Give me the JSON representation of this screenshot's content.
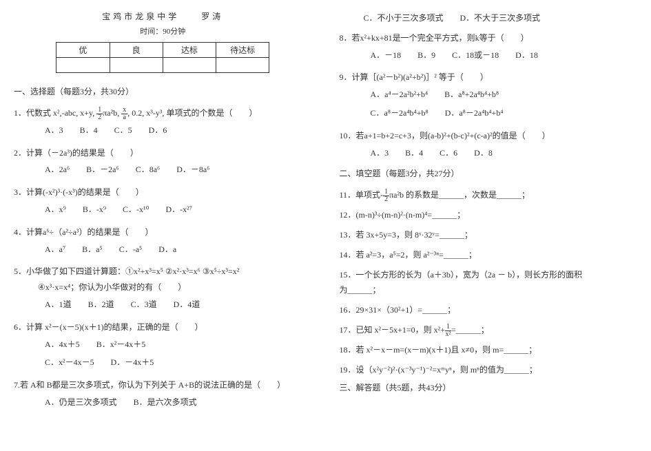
{
  "header": {
    "school": "宝鸡市龙泉中学",
    "teacher": "罗涛",
    "time": "时间：90分钟"
  },
  "gradeTable": {
    "headers": [
      "优",
      "良",
      "达标",
      "待达标"
    ]
  },
  "leftColumn": {
    "section1Title": "一、选择题（每题3分，共30分）",
    "q1": {
      "text": "1．代数式 x²,-abc, x+y, ",
      "text2": "πa²b, ",
      "text3": ", 0.2, x³-y³,",
      "text4": " 单项式的个数是（　　）",
      "options": "A．3　　B．4　　C．5　　D．6"
    },
    "q2": {
      "text": "2．计算（－2a³)的结果是（　　）",
      "options": "A．2a⁶　　B．－2a⁶　　C．8a⁶　　D．－8a⁶"
    },
    "q3": {
      "text": "3．计算(-x²)³·(-x³)的结果是（　　）",
      "options": "A．x⁹　　B．-x⁹　　C．-x¹⁰　　D．-x²⁷"
    },
    "q4": {
      "text": "4．计算a⁶÷（a²÷a³）的结果是（　　）",
      "options": "A．a⁷　　B．a⁵　　C．-a⁵　　D．a"
    },
    "q5": {
      "text": "5．小华做了如下四道计算题：①x²+x³=x⁵ ②x²·x³=x⁶ ③x⁵÷x³=x²",
      "text2": "④x³·x=x⁴；你认为小华做对的有（　　）",
      "options": "A．1道　　B．2道　　C．3道　　D．4道"
    },
    "q6": {
      "text": "6．计算 x²－(x－5)(x＋1)的结果，正确的是（　　）",
      "optA": "A．4x＋5",
      "optB": "B．x²－4x＋5",
      "optC": "C．x²－4x－5",
      "optD": "D．－4x＋5"
    },
    "q7": {
      "text": "7.若 A和 B都是三次多项式，你认为下列关于 A+B的说法正确的是（　　）",
      "options": "A．仍是三次多项式　　B．是六次多项式"
    }
  },
  "rightColumn": {
    "q7cont": "C．不小于三次多项式　　D．不大于三次多项式",
    "q8": {
      "text": "8．若x²+kx+81是一个完全平方式，则k等于（　　）",
      "options": "A．－18　　B．9　　C．18或－18　　D．18"
    },
    "q9": {
      "text": "9．计算［(a²－b²)(a²+b²)］² 等于（　　）",
      "optA": "A．a⁴－2a²b²+b⁴",
      "optB": "B．a⁸+2a⁴b⁴+b⁸",
      "optC": "C．a⁸－2a⁴b⁴+b⁸",
      "optD": "D．a⁸－2a⁴b⁴+b⁴"
    },
    "q10": {
      "text": "10．若a+1=b+2=c+3，则(a-b)²+(b-c)²+(c-a)²的值是（　　）",
      "options": "A．3　　B．4　　C．6　　D．8"
    },
    "section2Title": "二、填空题（每题3分，共27分）",
    "q11": "11．单项式-",
    "q11b": "πa²b 的系数是______，次数是______；",
    "q12": "12．(m-n)³÷(m-n)²·(n-m)⁴=______；",
    "q13": "13．若 3x+5y=3，则 8ˣ·32ʸ=______；",
    "q14": "14．若 a²=3，a⁵=2，则 a²⁻³ⁿ=______；",
    "q15": {
      "text": "15．一个长方形的长为（a＋3b），宽为（2a － b），则长方形的面积",
      "text2": "为______；"
    },
    "q16": "16．29×31×（30²+1）=______；",
    "q17": {
      "text": "17．已知 x²－5x+1=0，则 x²+",
      "text2": "=______；"
    },
    "q18": "18．若 x²－x－m=(x－m)(x＋1)且 x≠0，则 m=______；",
    "q19": "19．设（x²y⁻²)²·(x⁻³y⁻¹)⁻²=xᵐyⁿ，则 mⁿ的值为______；",
    "section3Title": "三、解答题（共5题，共43分）"
  }
}
